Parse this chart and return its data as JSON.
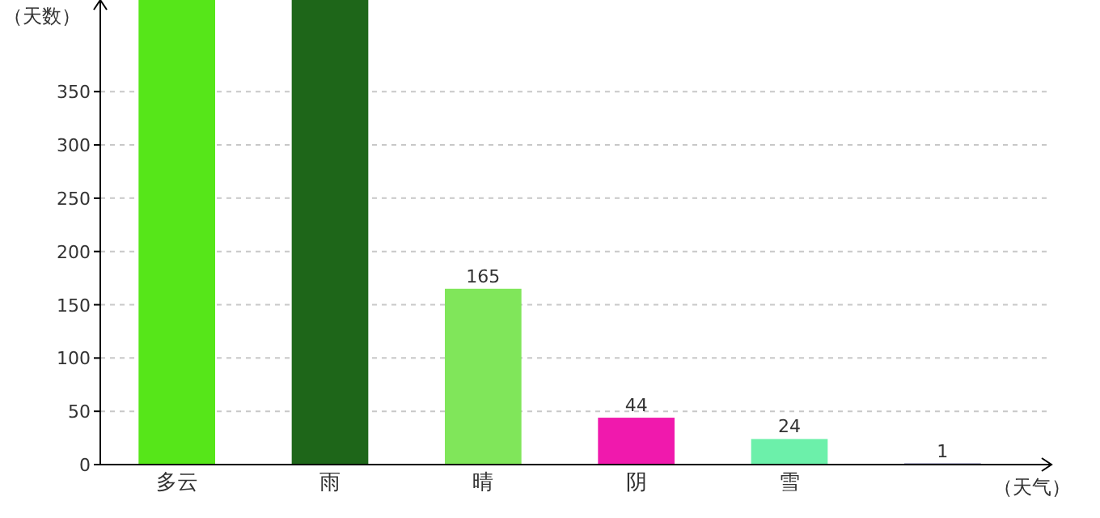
{
  "chart_data": {
    "type": "bar",
    "ylabel": "（天数）",
    "xlabel": "（天气）",
    "categories": [
      "多云",
      "雨",
      "晴",
      "阴",
      "雪",
      null
    ],
    "values": [
      436,
      436,
      165,
      44,
      24,
      1
    ],
    "colors": [
      "#56e619",
      "#1e6619",
      "#80e65a",
      "#f019ad",
      "#6cf0aa",
      "#1a1a66"
    ],
    "value_labels": [
      null,
      null,
      "165",
      "44",
      "24",
      "1"
    ],
    "ylim": [
      0,
      436
    ],
    "yticks": [
      0,
      50,
      100,
      150,
      200,
      250,
      300,
      350
    ],
    "grid": "y"
  }
}
